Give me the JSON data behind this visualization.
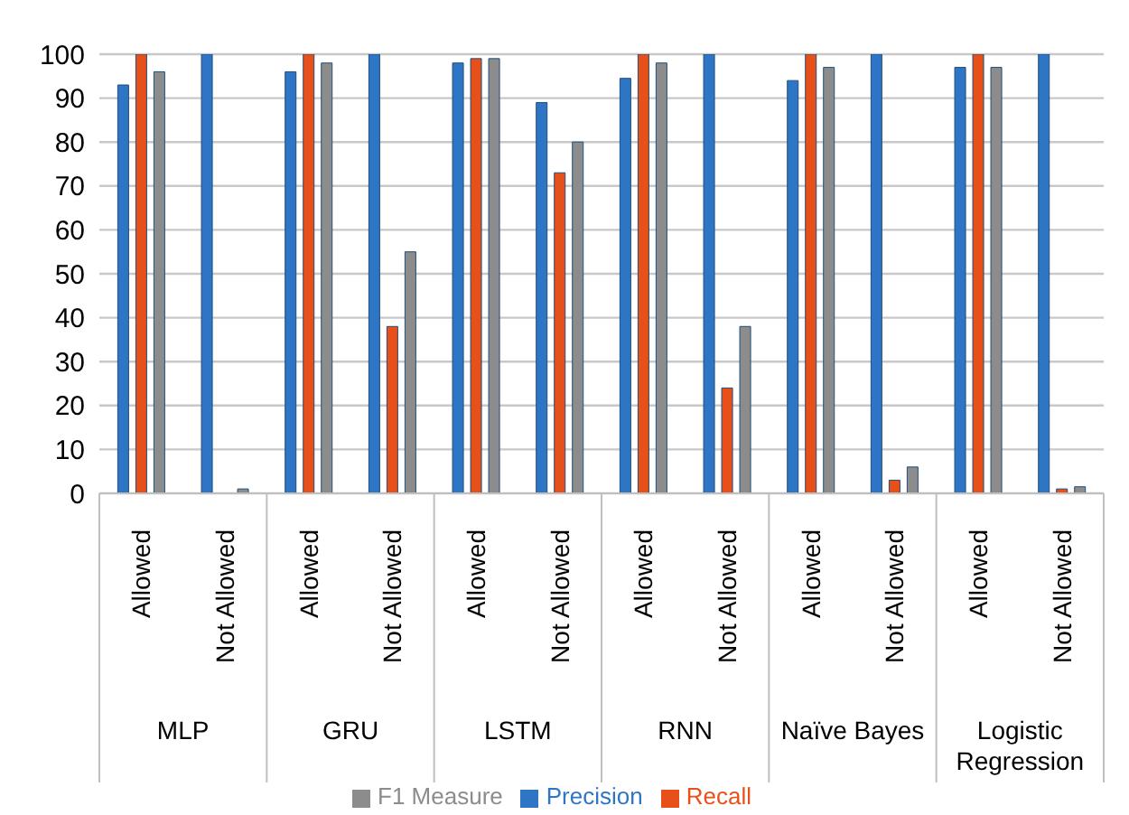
{
  "chart_data": {
    "type": "bar",
    "categories": [
      "Allowed",
      "Not Allowed",
      "Allowed",
      "Not Allowed",
      "Allowed",
      "Not Allowed",
      "Allowed",
      "Not Allowed",
      "Allowed",
      "Not Allowed",
      "Allowed",
      "Not Allowed"
    ],
    "annotations": [
      "MLP",
      "GRU",
      "LSTM",
      "RNN",
      "Naïve Bayes",
      "Logistic Regression"
    ],
    "series": [
      {
        "name": "Precision",
        "color": "#2e75c6",
        "values": [
          93,
          100,
          96,
          100,
          98,
          89,
          94.5,
          100,
          94,
          100,
          97,
          100
        ]
      },
      {
        "name": "Recall",
        "color": "#e8501a",
        "values": [
          100,
          0,
          100,
          38,
          99,
          73,
          100,
          24,
          100,
          3,
          100,
          1
        ]
      },
      {
        "name": "F1 Measure",
        "color": "#8c8c8c",
        "values": [
          96,
          1,
          98,
          55,
          99,
          80,
          98,
          38,
          97,
          6,
          97,
          1.5
        ]
      }
    ],
    "ylim": [
      0,
      100
    ],
    "yticks": [
      0,
      10,
      20,
      30,
      40,
      50,
      60,
      70,
      80,
      90,
      100
    ],
    "grid": "y",
    "legend": "bottom"
  }
}
